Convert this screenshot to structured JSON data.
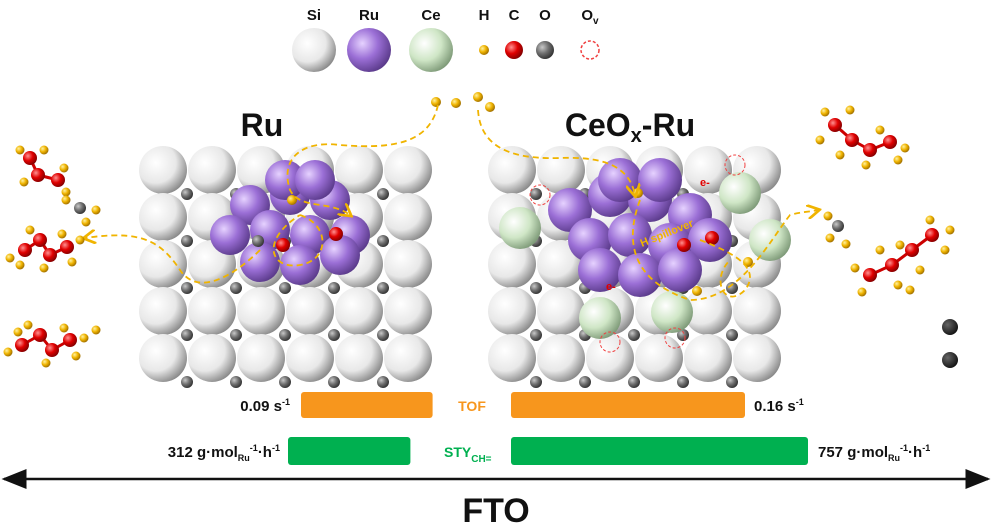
{
  "legend": [
    {
      "label": "Si",
      "color": "#f2f2f2"
    },
    {
      "label": "Ru",
      "color": "#9b6fd6"
    },
    {
      "label": "Ce",
      "color": "#cfe6c6"
    },
    {
      "label": "H",
      "color": "#f0b400"
    },
    {
      "label": "C",
      "color": "#e00000"
    },
    {
      "label": "O",
      "color": "#707070"
    },
    {
      "label": "O",
      "sub": "v",
      "color": "#f04040"
    }
  ],
  "panels": {
    "left_title": "Ru",
    "right_title_main": "CeO",
    "right_title_sub": "x",
    "right_title_tail": "-Ru",
    "spillover": "H spillover",
    "electron": "e-"
  },
  "metrics": {
    "tof": {
      "label": "TOF",
      "left_value": "0.09 s",
      "left_sup": "-1",
      "right_value": "0.16 s",
      "right_sup": "-1",
      "left_num": 0.09,
      "right_num": 0.16,
      "color": "#f7961d"
    },
    "sty": {
      "label": "STY",
      "label_sub": "CH=",
      "left_value": "312 g·mol",
      "right_value": "757 g·mol",
      "unit_sub": "Ru",
      "unit_sup1": "-1",
      "unit_mid": "·h",
      "unit_sup2": "-1",
      "left_num": 312,
      "right_num": 757,
      "color": "#00b050"
    }
  },
  "axis": {
    "label": "FTO"
  }
}
